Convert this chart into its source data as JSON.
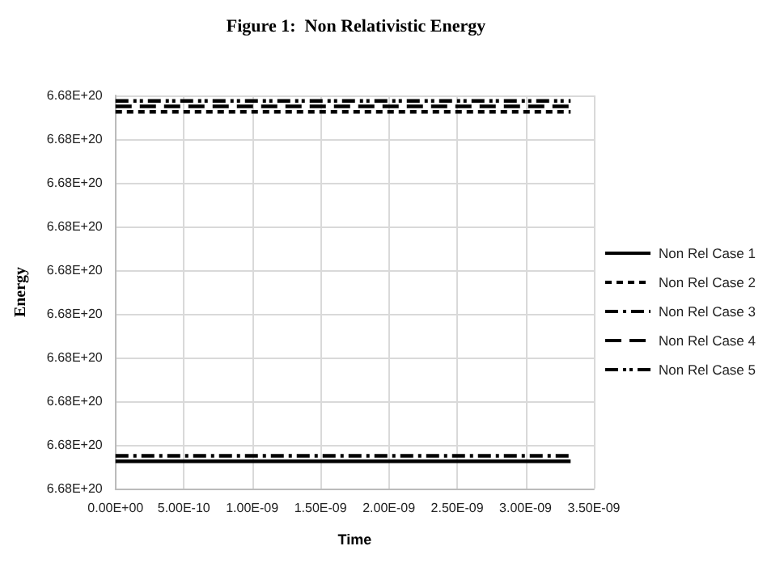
{
  "chart_data": {
    "type": "line",
    "title": "Figure 1:  Non Relativistic Energy",
    "xlabel": "Time",
    "ylabel": "Energy",
    "xlim": [
      0,
      3.5e-09
    ],
    "xticks": [
      {
        "value": 0,
        "label": "0.00E+00"
      },
      {
        "value": 5e-10,
        "label": "5.00E-10"
      },
      {
        "value": 1e-09,
        "label": "1.00E-09"
      },
      {
        "value": 1.5e-09,
        "label": "1.50E-09"
      },
      {
        "value": 2e-09,
        "label": "2.00E-09"
      },
      {
        "value": 2.5e-09,
        "label": "2.50E-09"
      },
      {
        "value": 3e-09,
        "label": "3.00E-09"
      },
      {
        "value": 3.5e-09,
        "label": "3.50E-09"
      }
    ],
    "ylim": [
      6.676e+20,
      6.6832e+20
    ],
    "yticks": [
      {
        "value": 6.676e+20,
        "label": "6.68E+20"
      },
      {
        "value": 6.6768e+20,
        "label": "6.68E+20"
      },
      {
        "value": 6.6776e+20,
        "label": "6.68E+20"
      },
      {
        "value": 6.6784e+20,
        "label": "6.68E+20"
      },
      {
        "value": 6.6792e+20,
        "label": "6.68E+20"
      },
      {
        "value": 6.68e+20,
        "label": "6.68E+20"
      },
      {
        "value": 6.6808e+20,
        "label": "6.68E+20"
      },
      {
        "value": 6.6816e+20,
        "label": "6.68E+20"
      },
      {
        "value": 6.6824e+20,
        "label": "6.68E+20"
      },
      {
        "value": 6.6832e+20,
        "label": "6.68E+20"
      }
    ],
    "x": [
      0,
      3.33e-09
    ],
    "grid": true,
    "legend": "right",
    "marker": "none",
    "series": [
      {
        "name": "Non Rel Case 1",
        "color": "#000000",
        "line_style": "solid",
        "values": [
          6.6765e+20,
          6.6765e+20
        ]
      },
      {
        "name": "Non Rel Case 2",
        "color": "#000000",
        "line_style": "dashed",
        "values": [
          6.6829e+20,
          6.6829e+20
        ]
      },
      {
        "name": "Non Rel Case 3",
        "color": "#000000",
        "line_style": "dashdot",
        "values": [
          6.6766e+20,
          6.6766e+20
        ]
      },
      {
        "name": "Non Rel Case 4",
        "color": "#000000",
        "line_style": "longdash",
        "values": [
          6.683e+20,
          6.683e+20
        ]
      },
      {
        "name": "Non Rel Case 5",
        "color": "#000000",
        "line_style": "dashdotdot",
        "values": [
          6.6831e+20,
          6.6831e+20
        ]
      }
    ]
  }
}
